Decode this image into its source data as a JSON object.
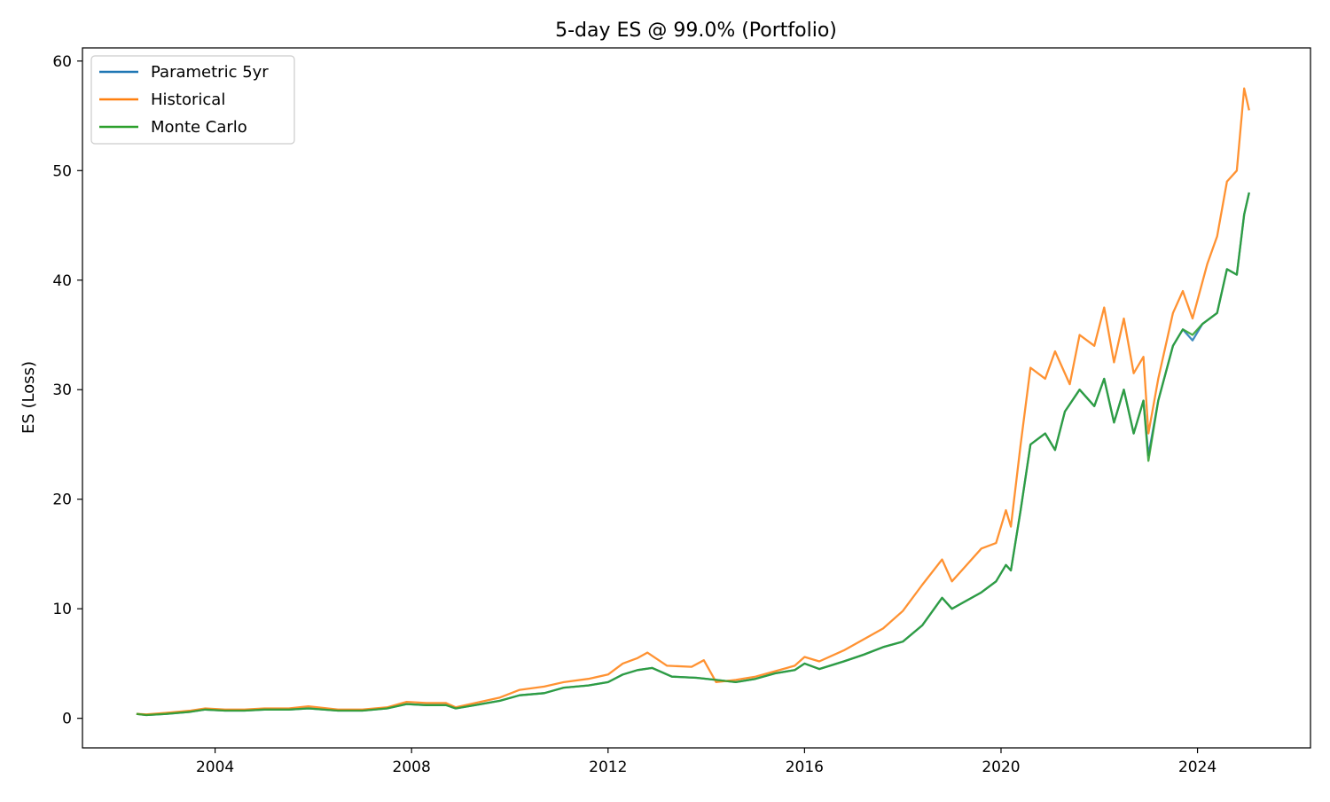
{
  "chart_data": {
    "type": "line",
    "title": "5-day ES @ 99.0% (Portfolio)",
    "xlabel": "",
    "ylabel": "ES (Loss)",
    "x_unit": "year",
    "xlim": [
      2001.3,
      2026.3
    ],
    "ylim": [
      -2.7,
      61.2
    ],
    "x_ticks": [
      2004,
      2008,
      2012,
      2016,
      2020,
      2024
    ],
    "x_tick_labels": [
      "2004",
      "2008",
      "2012",
      "2016",
      "2020",
      "2024"
    ],
    "y_ticks": [
      0,
      10,
      20,
      30,
      40,
      50,
      60
    ],
    "y_tick_labels": [
      "0",
      "10",
      "20",
      "30",
      "40",
      "50",
      "60"
    ],
    "grid": false,
    "legend_position": "top-left",
    "series": [
      {
        "name": "Parametric 5yr",
        "color": "#1f77b4",
        "x": [
          2002.4,
          2002.6,
          2003.0,
          2003.5,
          2003.8,
          2004.2,
          2004.6,
          2005.0,
          2005.5,
          2005.9,
          2006.5,
          2007.0,
          2007.5,
          2007.9,
          2008.3,
          2008.7,
          2008.9,
          2009.3,
          2009.8,
          2010.2,
          2010.7,
          2011.1,
          2011.6,
          2012.0,
          2012.3,
          2012.6,
          2012.9,
          2013.3,
          2013.8,
          2014.2,
          2014.6,
          2015.0,
          2015.4,
          2015.8,
          2016.0,
          2016.3,
          2016.8,
          2017.2,
          2017.6,
          2018.0,
          2018.4,
          2018.8,
          2019.0,
          2019.2,
          2019.6,
          2019.9,
          2020.1,
          2020.2,
          2020.4,
          2020.6,
          2020.9,
          2021.1,
          2021.3,
          2021.6,
          2021.9,
          2022.1,
          2022.3,
          2022.5,
          2022.7,
          2022.9,
          2023.0,
          2023.2,
          2023.5,
          2023.7,
          2023.9,
          2024.1,
          2024.4,
          2024.6,
          2024.8,
          2024.95,
          2025.05
        ],
        "values": [
          0.4,
          0.3,
          0.4,
          0.6,
          0.8,
          0.7,
          0.7,
          0.8,
          0.8,
          0.9,
          0.7,
          0.7,
          0.9,
          1.3,
          1.2,
          1.2,
          0.9,
          1.2,
          1.6,
          2.1,
          2.3,
          2.8,
          3.0,
          3.3,
          4.0,
          4.4,
          4.6,
          3.8,
          3.7,
          3.5,
          3.3,
          3.6,
          4.1,
          4.4,
          5.0,
          4.5,
          5.2,
          5.8,
          6.5,
          7.0,
          8.5,
          11.0,
          10.0,
          10.5,
          11.5,
          12.5,
          14.0,
          13.5,
          19.0,
          25.0,
          26.0,
          24.5,
          28.0,
          30.0,
          28.5,
          31.0,
          27.0,
          30.0,
          26.0,
          29.0,
          24.0,
          29.0,
          34.0,
          35.5,
          34.5,
          36.0,
          37.0,
          41.0,
          40.5,
          46.0,
          48.0
        ]
      },
      {
        "name": "Historical",
        "color": "#ff7f0e",
        "x": [
          2002.4,
          2002.6,
          2003.0,
          2003.5,
          2003.8,
          2004.2,
          2004.6,
          2005.0,
          2005.5,
          2005.9,
          2006.5,
          2007.0,
          2007.5,
          2007.9,
          2008.3,
          2008.7,
          2008.9,
          2009.3,
          2009.8,
          2010.2,
          2010.7,
          2011.1,
          2011.6,
          2012.0,
          2012.3,
          2012.6,
          2012.8,
          2013.2,
          2013.7,
          2013.95,
          2014.2,
          2014.6,
          2015.0,
          2015.4,
          2015.8,
          2016.0,
          2016.3,
          2016.8,
          2017.2,
          2017.6,
          2018.0,
          2018.4,
          2018.8,
          2019.0,
          2019.2,
          2019.6,
          2019.9,
          2020.1,
          2020.2,
          2020.4,
          2020.6,
          2020.9,
          2021.1,
          2021.4,
          2021.6,
          2021.9,
          2022.1,
          2022.3,
          2022.5,
          2022.7,
          2022.9,
          2023.0,
          2023.2,
          2023.5,
          2023.7,
          2023.9,
          2024.2,
          2024.4,
          2024.6,
          2024.8,
          2024.95,
          2025.05
        ],
        "values": [
          0.4,
          0.35,
          0.5,
          0.7,
          0.9,
          0.8,
          0.8,
          0.9,
          0.9,
          1.1,
          0.8,
          0.8,
          1.0,
          1.5,
          1.4,
          1.4,
          1.0,
          1.4,
          1.9,
          2.6,
          2.9,
          3.3,
          3.6,
          4.0,
          5.0,
          5.5,
          6.0,
          4.8,
          4.7,
          5.3,
          3.3,
          3.5,
          3.8,
          4.3,
          4.8,
          5.6,
          5.2,
          6.2,
          7.2,
          8.2,
          9.8,
          12.2,
          14.5,
          12.5,
          13.5,
          15.5,
          16.0,
          19.0,
          17.5,
          25.0,
          32.0,
          31.0,
          33.5,
          30.5,
          35.0,
          34.0,
          37.5,
          32.5,
          36.5,
          31.5,
          33.0,
          26.0,
          31.0,
          37.0,
          39.0,
          36.5,
          41.5,
          44.0,
          49.0,
          50.0,
          57.5,
          55.5
        ]
      },
      {
        "name": "Monte Carlo",
        "color": "#2ca02c",
        "x": [
          2002.4,
          2002.6,
          2003.0,
          2003.5,
          2003.8,
          2004.2,
          2004.6,
          2005.0,
          2005.5,
          2005.9,
          2006.5,
          2007.0,
          2007.5,
          2007.9,
          2008.3,
          2008.7,
          2008.9,
          2009.3,
          2009.8,
          2010.2,
          2010.7,
          2011.1,
          2011.6,
          2012.0,
          2012.3,
          2012.6,
          2012.9,
          2013.3,
          2013.8,
          2014.2,
          2014.6,
          2015.0,
          2015.4,
          2015.8,
          2016.0,
          2016.3,
          2016.8,
          2017.2,
          2017.6,
          2018.0,
          2018.4,
          2018.8,
          2019.0,
          2019.2,
          2019.6,
          2019.9,
          2020.1,
          2020.2,
          2020.4,
          2020.6,
          2020.9,
          2021.1,
          2021.3,
          2021.6,
          2021.9,
          2022.1,
          2022.3,
          2022.5,
          2022.7,
          2022.9,
          2023.0,
          2023.2,
          2023.5,
          2023.7,
          2023.9,
          2024.1,
          2024.4,
          2024.6,
          2024.8,
          2024.95,
          2025.05
        ],
        "values": [
          0.4,
          0.3,
          0.4,
          0.6,
          0.8,
          0.7,
          0.7,
          0.8,
          0.8,
          0.9,
          0.7,
          0.7,
          0.9,
          1.3,
          1.2,
          1.2,
          0.9,
          1.2,
          1.6,
          2.1,
          2.3,
          2.8,
          3.0,
          3.3,
          4.0,
          4.4,
          4.6,
          3.8,
          3.7,
          3.5,
          3.3,
          3.6,
          4.1,
          4.4,
          5.0,
          4.5,
          5.2,
          5.8,
          6.5,
          7.0,
          8.5,
          11.0,
          10.0,
          10.5,
          11.5,
          12.5,
          14.0,
          13.5,
          19.0,
          25.0,
          26.0,
          24.5,
          28.0,
          30.0,
          28.5,
          31.0,
          27.0,
          30.0,
          26.0,
          29.0,
          23.5,
          29.0,
          34.0,
          35.5,
          35.0,
          36.0,
          37.0,
          41.0,
          40.5,
          46.0,
          48.0
        ]
      }
    ]
  }
}
